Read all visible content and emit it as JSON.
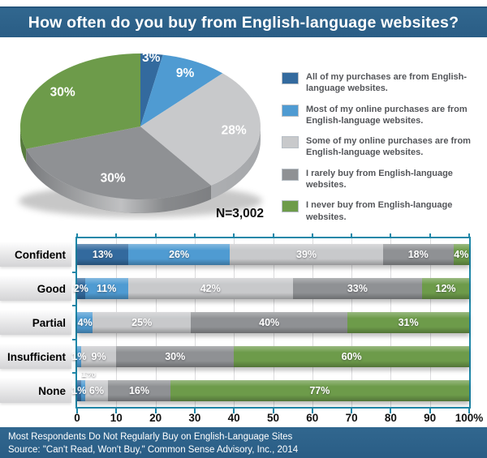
{
  "header": {
    "title": "How often do you buy from English-language websites?"
  },
  "colors": {
    "header_bg": "#2B5F88",
    "footer_bg": "#2B5F88",
    "plot_border": "#1F87A8",
    "grid": "#DCDCDE",
    "all": "#336A9E",
    "most": "#4F9BD2",
    "some": "#C8C9CB",
    "rarely": "#8F9194",
    "never": "#6D9B4A",
    "some_side": "#A6A8AB",
    "rarely_side": "#737578",
    "never_side": "#54793A"
  },
  "legend": {
    "items": [
      {
        "key": "all",
        "label": "All of my purchases are from English-language websites.",
        "color": "#336A9E"
      },
      {
        "key": "most",
        "label": "Most of my online purchases are from English-language websites.",
        "color": "#4F9BD2"
      },
      {
        "key": "some",
        "label": "Some of my online purchases are from English-language websites.",
        "color": "#C8C9CB"
      },
      {
        "key": "rarely",
        "label": "I rarely buy from English-language websites.",
        "color": "#8F9194"
      },
      {
        "key": "never",
        "label": "I never buy from English-language websites.",
        "color": "#6D9B4A"
      }
    ]
  },
  "chart_data": [
    {
      "type": "pie",
      "style": "3d",
      "title": "How often do you buy from English-language websites?",
      "labels": [
        "All of my purchases are from English-language websites.",
        "Most of my online purchases are from English-language websites.",
        "Some of my online purchases are from English-language websites.",
        "I rarely buy from English-language websites.",
        "I never buy from English-language websites."
      ],
      "keys": [
        "all",
        "most",
        "some",
        "rarely",
        "never"
      ],
      "values": [
        3,
        9,
        28,
        30,
        30
      ],
      "value_labels": [
        "3%",
        "9%",
        "28%",
        "30%",
        "30%"
      ],
      "colors": [
        "#336A9E",
        "#4F9BD2",
        "#C8C9CB",
        "#8F9194",
        "#6D9B4A"
      ],
      "start_angle_deg": 0,
      "clockwise": true,
      "annotation": "N=3,002"
    },
    {
      "type": "bar",
      "subtype": "horizontal-stacked-100",
      "categories": [
        "Confident",
        "Good",
        "Partial",
        "Insufficient",
        "None"
      ],
      "series": [
        {
          "key": "all",
          "name": "All of my purchases are from English-language websites.",
          "color": "#336A9E",
          "values": [
            13,
            2,
            0,
            0,
            1
          ]
        },
        {
          "key": "most",
          "name": "Most of my online purchases are from English-language websites.",
          "color": "#4F9BD2",
          "values": [
            26,
            11,
            4,
            1,
            1
          ]
        },
        {
          "key": "some",
          "name": "Some of my online purchases are from English-language websites.",
          "color": "#C8C9CB",
          "values": [
            39,
            42,
            25,
            9,
            6
          ]
        },
        {
          "key": "rarely",
          "name": "I rarely buy from English-language websites.",
          "color": "#8F9194",
          "values": [
            18,
            33,
            40,
            30,
            16
          ]
        },
        {
          "key": "never",
          "name": "I never buy from English-language websites.",
          "color": "#6D9B4A",
          "values": [
            4,
            12,
            31,
            60,
            77
          ]
        }
      ],
      "xlim": [
        0,
        100
      ],
      "x_tick_labels": [
        "0",
        "10",
        "20",
        "30",
        "40",
        "50",
        "60",
        "70",
        "80",
        "90",
        "100%"
      ],
      "grid": true,
      "legend_position": "none",
      "displaced_label": {
        "category": "None",
        "series_key": "most",
        "text": "1%"
      }
    }
  ],
  "footer": {
    "headline": "Most Respondents Do Not Regularly Buy on English-Language Sites",
    "source": "Source: \"Can't Read, Won't Buy,\" Common Sense Advisory, Inc., 2014"
  }
}
